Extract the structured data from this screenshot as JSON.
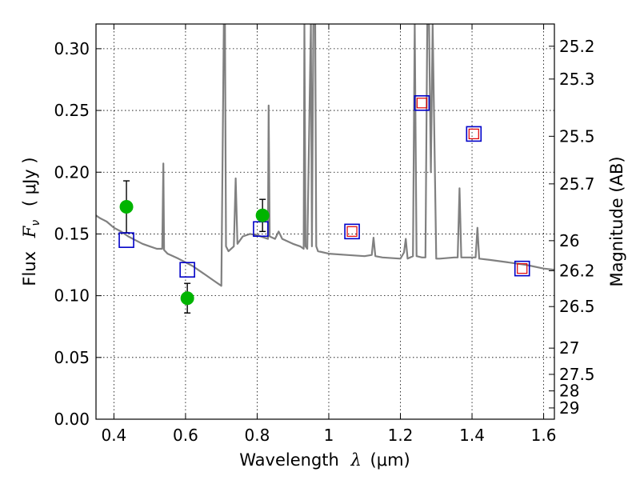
{
  "chart_data": {
    "type": "scatter",
    "xlabel": "Wavelength λ (μm)",
    "ylabel": "Flux F_ν (μJy)",
    "ylabel_parts": {
      "prefix": "Flux",
      "symbol": "F",
      "subscript": "ν",
      "unit": "( μJy )"
    },
    "xlabel_parts": {
      "text": "Wavelength",
      "symbol": "λ",
      "unit": "(μm)"
    },
    "y2label": "Magnitude (AB)",
    "xlim": [
      0.35,
      1.63
    ],
    "ylim": [
      0.0,
      0.32
    ],
    "grid": true,
    "x_ticks": [
      0.4,
      0.6,
      0.8,
      1.0,
      1.2,
      1.4,
      1.6
    ],
    "x_tick_labels": [
      "0.4",
      "0.6",
      "0.8",
      "1",
      "1.2",
      "1.4",
      "1.6"
    ],
    "y_ticks": [
      0.0,
      0.05,
      0.1,
      0.15,
      0.2,
      0.25,
      0.3
    ],
    "y_tick_labels": [
      "0.00",
      "0.05",
      "0.10",
      "0.15",
      "0.20",
      "0.25",
      "0.30"
    ],
    "mag_ticks": [
      25.2,
      25.3,
      25.5,
      25.7,
      26,
      26.2,
      26.5,
      27,
      27.5,
      28,
      29
    ],
    "mag_tick_labels": [
      "25.2",
      "25.3",
      "25.5",
      "25.7",
      "26",
      "26.2",
      "26.5",
      "27",
      "27.5",
      "28",
      "29"
    ],
    "colors": {
      "spectrum": "#808080",
      "observed": "#00b400",
      "model_blue": "#0000c8",
      "model_red": "#e00000",
      "errorbar": "#000000"
    },
    "series": [
      {
        "type": "line",
        "x": [
          0.35,
          0.36,
          0.38,
          0.4,
          0.42,
          0.44,
          0.46,
          0.48,
          0.5,
          0.52,
          0.535,
          0.538,
          0.54,
          0.55,
          0.58,
          0.6,
          0.62,
          0.65,
          0.68,
          0.7,
          0.707,
          0.71,
          0.713,
          0.72,
          0.735,
          0.74,
          0.745,
          0.76,
          0.78,
          0.8,
          0.82,
          0.83,
          0.832,
          0.835,
          0.85,
          0.86,
          0.87,
          0.9,
          0.92,
          0.93,
          0.932,
          0.935,
          0.94,
          0.95,
          0.953,
          0.957,
          0.962,
          0.965,
          0.97,
          1.0,
          1.05,
          1.1,
          1.12,
          1.125,
          1.13,
          1.15,
          1.2,
          1.21,
          1.215,
          1.22,
          1.235,
          1.24,
          1.245,
          1.26,
          1.27,
          1.275,
          1.28,
          1.285,
          1.29,
          1.3,
          1.31,
          1.35,
          1.36,
          1.365,
          1.37,
          1.4,
          1.41,
          1.415,
          1.42,
          1.45,
          1.5,
          1.55,
          1.6,
          1.63
        ],
        "y": [
          0.165,
          0.163,
          0.16,
          0.155,
          0.152,
          0.148,
          0.145,
          0.142,
          0.14,
          0.138,
          0.138,
          0.207,
          0.137,
          0.134,
          0.13,
          0.127,
          0.124,
          0.118,
          0.112,
          0.108,
          0.32,
          0.32,
          0.14,
          0.136,
          0.14,
          0.195,
          0.142,
          0.148,
          0.15,
          0.149,
          0.147,
          0.146,
          0.254,
          0.148,
          0.146,
          0.152,
          0.146,
          0.142,
          0.14,
          0.138,
          0.32,
          0.14,
          0.138,
          0.32,
          0.14,
          0.32,
          0.32,
          0.14,
          0.136,
          0.134,
          0.133,
          0.132,
          0.133,
          0.147,
          0.132,
          0.131,
          0.13,
          0.135,
          0.146,
          0.13,
          0.132,
          0.32,
          0.132,
          0.131,
          0.131,
          0.32,
          0.32,
          0.2,
          0.32,
          0.13,
          0.13,
          0.131,
          0.131,
          0.187,
          0.131,
          0.131,
          0.131,
          0.155,
          0.13,
          0.129,
          0.127,
          0.125,
          0.122,
          0.121
        ]
      },
      {
        "type": "scatter",
        "marker": "circle",
        "x": [
          0.435,
          0.605,
          0.815
        ],
        "y": [
          0.172,
          0.098,
          0.165
        ],
        "yerr": [
          0.021,
          0.012,
          0.013
        ]
      },
      {
        "type": "scatter",
        "marker": "square",
        "x": [
          0.435,
          0.605,
          0.81,
          1.065,
          1.26,
          1.405,
          1.54
        ],
        "y": [
          0.145,
          0.121,
          0.154,
          0.152,
          0.256,
          0.231,
          0.122
        ]
      },
      {
        "type": "scatter",
        "marker": "small-square",
        "x": [
          1.065,
          1.26,
          1.405,
          1.54
        ],
        "y": [
          0.152,
          0.256,
          0.231,
          0.122
        ]
      }
    ]
  }
}
